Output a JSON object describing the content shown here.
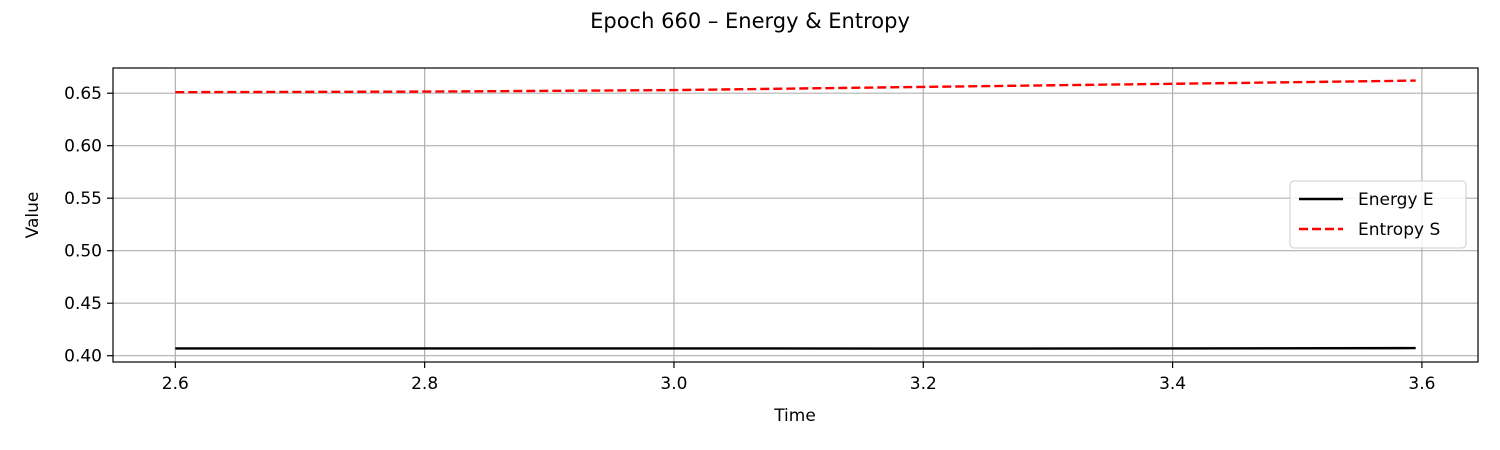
{
  "chart_data": {
    "type": "line",
    "title": "Epoch 660 – Energy & Entropy",
    "xlabel": "Time",
    "ylabel": "Value",
    "xlim": [
      2.55,
      3.645
    ],
    "ylim": [
      0.394,
      0.674
    ],
    "xticks": [
      2.6,
      2.8,
      3.0,
      3.2,
      3.4,
      3.6
    ],
    "xtick_labels": [
      "2.6",
      "2.8",
      "3.0",
      "3.2",
      "3.4",
      "3.6"
    ],
    "yticks": [
      0.4,
      0.45,
      0.5,
      0.55,
      0.6,
      0.65
    ],
    "ytick_labels": [
      "0.40",
      "0.45",
      "0.50",
      "0.55",
      "0.60",
      "0.65"
    ],
    "grid": true,
    "legend_position": "center-right",
    "series": [
      {
        "name": "Energy E",
        "color": "#000000",
        "style": "solid",
        "x": [
          2.6,
          2.8,
          3.0,
          3.2,
          3.4,
          3.595
        ],
        "y": [
          0.407,
          0.407,
          0.407,
          0.4068,
          0.407,
          0.4072
        ]
      },
      {
        "name": "Entropy S",
        "color": "#ff0000",
        "style": "dashed",
        "x": [
          2.6,
          2.8,
          3.0,
          3.2,
          3.4,
          3.595
        ],
        "y": [
          0.651,
          0.6515,
          0.653,
          0.656,
          0.659,
          0.662
        ]
      }
    ]
  }
}
